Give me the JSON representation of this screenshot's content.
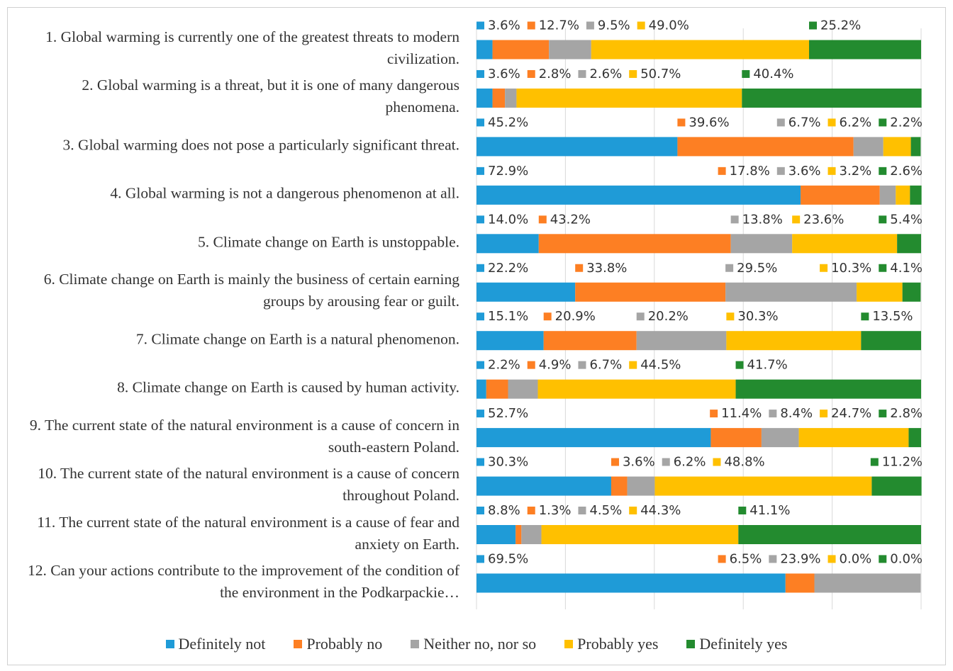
{
  "chart_data": {
    "type": "stacked-bar-horizontal",
    "categories": [
      "1. Global warming is currently one of the greatest threats to modern civilization.",
      "2. Global warming is a threat, but it is one of many dangerous phenomena.",
      "3. Global warming does not pose a particularly significant threat.",
      "4. Global warming is not a dangerous phenomenon at all.",
      "5. Climate change on Earth is unstoppable.",
      "6. Climate change on Earth is mainly the business of certain earning groups by arousing fear or guilt.",
      "7. Climate change on Earth is a natural phenomenon.",
      "8. Climate change on Earth is caused by human activity.",
      "9. The current state of the natural environment is a cause of concern in south-eastern Poland.",
      "10. The current state of the natural environment is a cause of concern throughout Poland.",
      "11. The current state of the natural environment is a cause of fear and anxiety on Earth.",
      "12. Can your actions contribute to the improvement of the condition of the environment in the Podkarpackie…"
    ],
    "series": [
      {
        "name": "Definitely not",
        "color": "#1f9bd7",
        "values": [
          3.6,
          3.6,
          45.2,
          72.9,
          14.0,
          22.2,
          15.1,
          2.2,
          52.7,
          30.3,
          8.8,
          69.5
        ],
        "value_labels": [
          "3.6%",
          "3.6%",
          "45.2%",
          "72.9%",
          "14.0%",
          "22.2%",
          "15.1%",
          "2.2%",
          "52.7%",
          "30.3%",
          "8.8%",
          "69.5%"
        ]
      },
      {
        "name": "Probably no",
        "color": "#fd7f23",
        "values": [
          12.7,
          2.8,
          39.6,
          17.8,
          43.2,
          33.8,
          20.9,
          4.9,
          11.4,
          3.6,
          1.3,
          6.5
        ],
        "value_labels": [
          "12.7%",
          "2.8%",
          "39.6%",
          "17.8%",
          "43.2%",
          "33.8%",
          "20.9%",
          "4.9%",
          "11.4%",
          "3.6%",
          "1.3%",
          "6.5%"
        ]
      },
      {
        "name": "Neither no, nor so",
        "color": "#a5a5a5",
        "values": [
          9.5,
          2.6,
          6.7,
          3.6,
          13.8,
          29.5,
          20.2,
          6.7,
          8.4,
          6.2,
          4.5,
          23.9
        ],
        "value_labels": [
          "9.5%",
          "2.6%",
          "6.7%",
          "3.6%",
          "13.8%",
          "29.5%",
          "20.2%",
          "6.7%",
          "8.4%",
          "6.2%",
          "4.5%",
          "23.9%"
        ]
      },
      {
        "name": "Probably yes",
        "color": "#ffc000",
        "values": [
          49.0,
          50.7,
          6.2,
          3.2,
          23.6,
          10.3,
          30.3,
          44.5,
          24.7,
          48.8,
          44.3,
          0.0
        ],
        "value_labels": [
          "49.0%",
          "50.7%",
          "6.2%",
          "3.2%",
          "23.6%",
          "10.3%",
          "30.3%",
          "44.5%",
          "24.7%",
          "48.8%",
          "44.3%",
          "0.0%"
        ]
      },
      {
        "name": "Definitely yes",
        "color": "#238b2f",
        "values": [
          25.2,
          40.4,
          2.2,
          2.6,
          5.4,
          4.1,
          13.5,
          41.7,
          2.8,
          11.2,
          41.1,
          0.0
        ],
        "value_labels": [
          "25.2%",
          "40.4%",
          "2.2%",
          "2.6%",
          "5.4%",
          "4.1%",
          "13.5%",
          "41.7%",
          "2.8%",
          "11.2%",
          "41.1%",
          "0.0%"
        ]
      }
    ],
    "xlim": [
      0,
      100
    ],
    "xticks": [
      0,
      20,
      40,
      60,
      80,
      100
    ],
    "grid": true,
    "legend": "bottom"
  }
}
